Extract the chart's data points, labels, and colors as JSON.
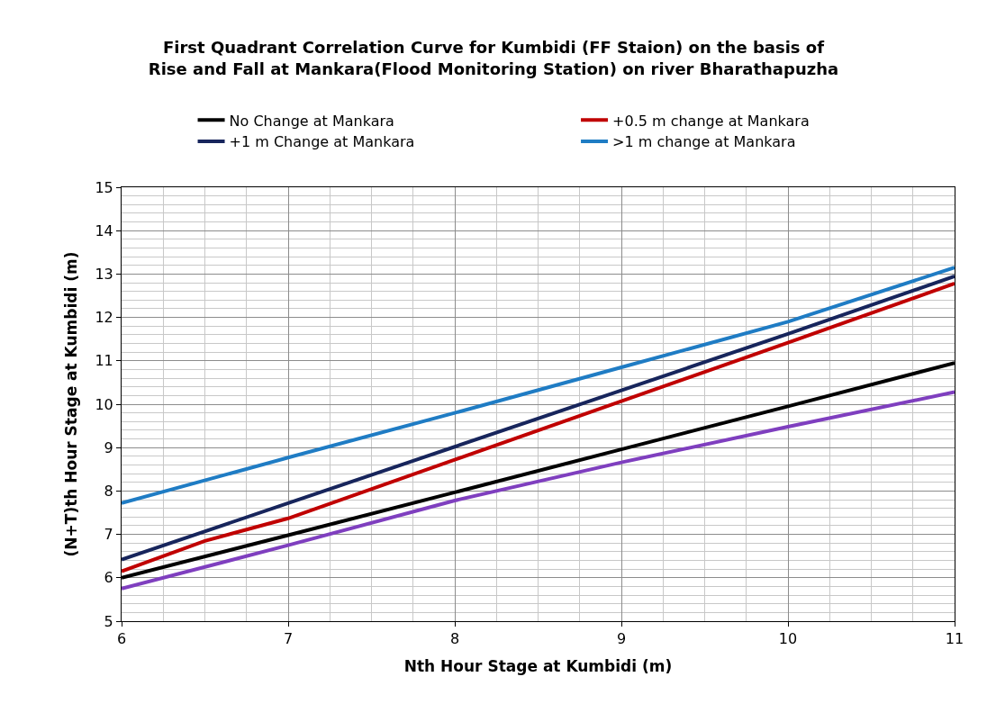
{
  "chart_data": {
    "type": "line",
    "title": "First Quadrant Correlation Curve for Kumbidi (FF Staion) on the basis of\nRise and Fall at Mankara(Flood Monitoring Station) on river Bharathapuzha",
    "xlabel": "Nth Hour Stage at Kumbidi (m)",
    "ylabel": "(N+T)th Hour Stage at Kumbidi (m)",
    "series": [
      {
        "name": "No Change at Mankara",
        "color": "#000000",
        "x": [
          6,
          7,
          8,
          9,
          10,
          11
        ],
        "values": [
          6.0,
          6.98,
          7.97,
          8.96,
          9.95,
          10.95
        ]
      },
      {
        "name": "+0.5 m change at Mankara",
        "color": "#c00000",
        "x": [
          6,
          6.5,
          7,
          8,
          9,
          10,
          11
        ],
        "values": [
          6.15,
          6.85,
          7.37,
          8.72,
          10.07,
          11.42,
          12.78
        ]
      },
      {
        "name": "+1 m Change at Mankara",
        "color": "#17255c",
        "x": [
          6,
          7,
          8,
          9,
          10,
          11
        ],
        "values": [
          6.42,
          7.72,
          9.02,
          10.32,
          11.62,
          12.95
        ]
      },
      {
        "name": ">1 m change at Mankara",
        "color": "#1f7cc4",
        "x": [
          6,
          7,
          8,
          9,
          10,
          11
        ],
        "values": [
          7.72,
          8.77,
          9.8,
          10.85,
          11.9,
          13.15
        ]
      },
      {
        "color": "#7f3fbf",
        "x": [
          6,
          7,
          8,
          9,
          10,
          11
        ],
        "values": [
          5.75,
          6.75,
          7.78,
          8.66,
          9.48,
          10.28
        ]
      }
    ],
    "xlim": [
      6,
      11
    ],
    "ylim": [
      5,
      15
    ],
    "xticks": [
      6,
      {
        "value": 6.25,
        "label": null
      },
      {
        "value": 6.5,
        "label": null
      },
      {
        "value": 6.75,
        "label": null
      },
      7,
      {
        "value": 7.25,
        "label": null
      },
      {
        "value": 7.5,
        "label": null
      },
      {
        "value": 7.75,
        "label": null
      },
      8,
      {
        "value": 8.25,
        "label": null
      },
      {
        "value": 8.5,
        "label": null
      },
      {
        "value": 8.75,
        "label": null
      },
      9,
      {
        "value": 9.25,
        "label": null
      },
      {
        "value": 9.5,
        "label": null
      },
      {
        "value": 9.75,
        "label": null
      },
      10,
      {
        "value": 10.25,
        "label": null
      },
      {
        "value": 10.5,
        "label": null
      },
      {
        "value": 10.75,
        "label": null
      },
      11
    ],
    "yticks": [
      5,
      {
        "value": 5.2,
        "label": null
      },
      {
        "value": 5.4,
        "label": null
      },
      {
        "value": 5.6,
        "label": null
      },
      {
        "value": 5.8,
        "label": null
      },
      6,
      {
        "value": 6.2,
        "label": null
      },
      {
        "value": 6.4,
        "label": null
      },
      {
        "value": 6.6,
        "label": null
      },
      {
        "value": 6.8,
        "label": null
      },
      7,
      {
        "value": 7.2,
        "label": null
      },
      {
        "value": 7.4,
        "label": null
      },
      {
        "value": 7.6,
        "label": null
      },
      {
        "value": 7.8,
        "label": null
      },
      8,
      {
        "value": 8.2,
        "label": null
      },
      {
        "value": 8.4,
        "label": null
      },
      {
        "value": 8.6,
        "label": null
      },
      {
        "value": 8.8,
        "label": null
      },
      9,
      {
        "value": 9.2,
        "label": null
      },
      {
        "value": 9.4,
        "label": null
      },
      {
        "value": 9.6,
        "label": null
      },
      {
        "value": 9.8,
        "label": null
      },
      10,
      {
        "value": 10.2,
        "label": null
      },
      {
        "value": 10.4,
        "label": null
      },
      {
        "value": 10.6,
        "label": null
      },
      {
        "value": 10.8,
        "label": null
      },
      11,
      {
        "value": 11.2,
        "label": null
      },
      {
        "value": 11.4,
        "label": null
      },
      {
        "value": 11.6,
        "label": null
      },
      {
        "value": 11.8,
        "label": null
      },
      12,
      {
        "value": 12.2,
        "label": null
      },
      {
        "value": 12.4,
        "label": null
      },
      {
        "value": 12.6,
        "label": null
      },
      {
        "value": 12.8,
        "label": null
      },
      13,
      {
        "value": 13.2,
        "label": null
      },
      {
        "value": 13.4,
        "label": null
      },
      {
        "value": 13.6,
        "label": null
      },
      {
        "value": 13.8,
        "label": null
      },
      14,
      {
        "value": 14.2,
        "label": null
      },
      {
        "value": 14.4,
        "label": null
      },
      {
        "value": 14.6,
        "label": null
      },
      {
        "value": 14.8,
        "label": null
      },
      15
    ],
    "grid": true,
    "legend": "top",
    "marker": "none",
    "line_style": "solid"
  }
}
